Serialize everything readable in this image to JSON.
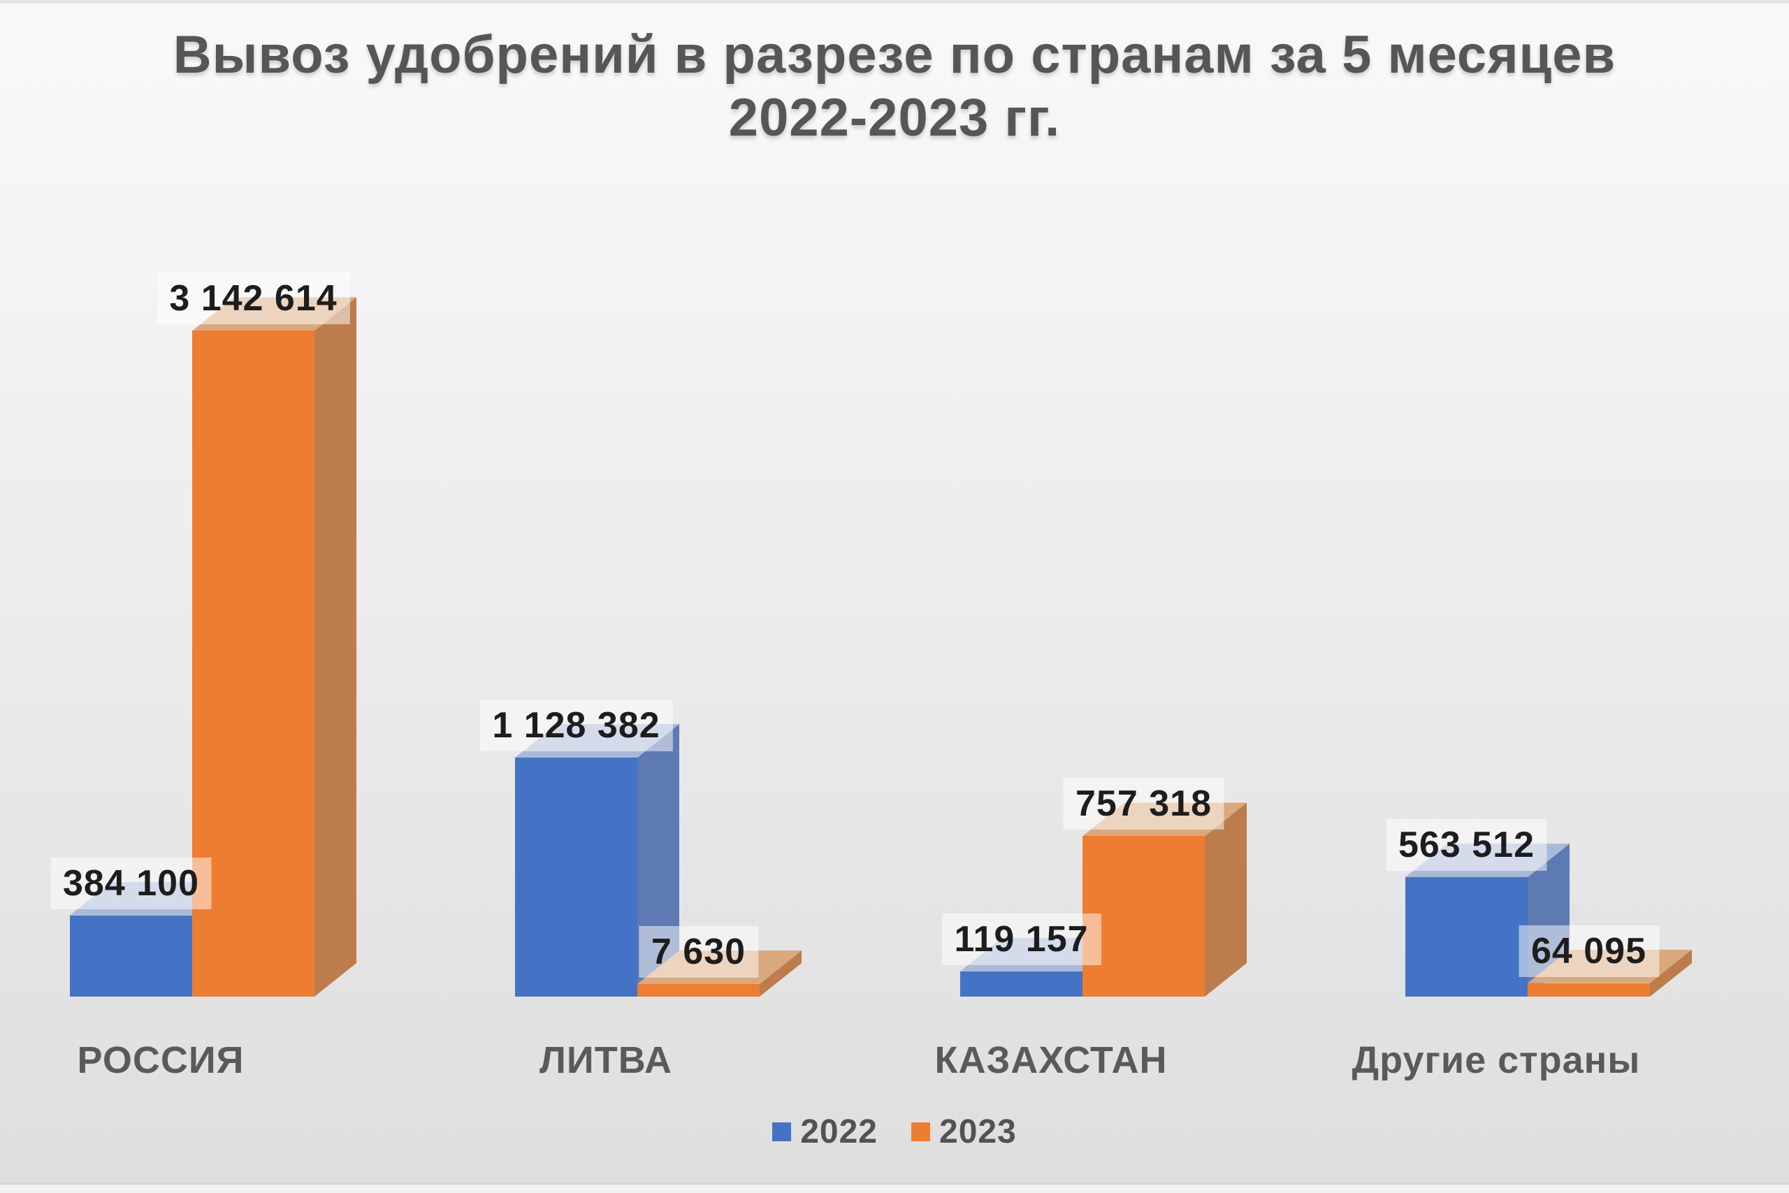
{
  "title": {
    "line1": "Вывоз удобрений в разрезе по странам за 5 месяцев",
    "line2": "2022-2023 гг."
  },
  "legend": {
    "items": [
      {
        "label": "2022",
        "color": "#4472c4"
      },
      {
        "label": "2023",
        "color": "#ed7d31"
      }
    ]
  },
  "chart_data": {
    "type": "bar",
    "style": "3d-clustered-column",
    "title": "Вывоз удобрений в разрезе по странам за 5 месяцев 2022-2023 гг.",
    "categories": [
      "РОССИЯ",
      "ЛИТВА",
      "КАЗАХСТАН",
      "Другие страны"
    ],
    "series": [
      {
        "name": "2022",
        "values": [
          384100,
          1128382,
          119157,
          563512
        ],
        "data_labels": [
          "384 100",
          "1 128 382",
          "119 157",
          "563 512"
        ],
        "color_front": "#4472c4",
        "color_side": "#5e7ab2",
        "color_top": "#a9b9d8"
      },
      {
        "name": "2023",
        "values": [
          3142614,
          7630,
          757318,
          64095
        ],
        "data_labels": [
          "3 142 614",
          "7 630",
          "757 318",
          "64 095"
        ],
        "color_front": "#ed7d31",
        "color_side": "#bc7c4b",
        "color_top": "#dba87e"
      }
    ],
    "xlabel": "",
    "ylabel": "",
    "ylim": [
      0,
      3200000
    ],
    "grid": false,
    "axes_visible": false,
    "data_labels": true,
    "legend_position": "bottom",
    "background": {
      "top": "#f9f9f9",
      "bottom": "#dedede"
    },
    "title_color": "#565656",
    "label_color": "#1d1d1d",
    "category_color": "#5a5a5a"
  }
}
